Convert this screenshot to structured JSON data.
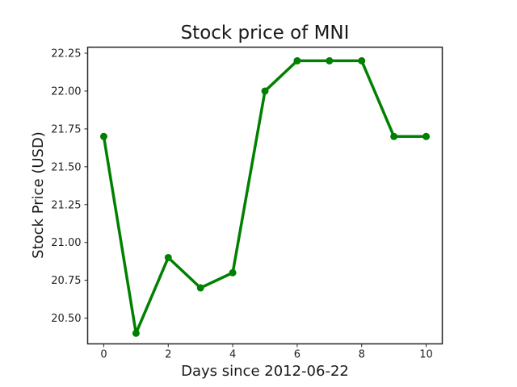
{
  "chart_data": {
    "type": "line",
    "title": "Stock price of MNI",
    "xlabel": "Days since 2012-06-22",
    "ylabel": "Stock Price (USD)",
    "x": [
      0,
      1,
      2,
      3,
      4,
      5,
      6,
      7,
      8,
      9,
      10
    ],
    "series": [
      {
        "values": [
          21.7,
          20.4,
          20.9,
          20.7,
          20.8,
          22.0,
          22.2,
          22.2,
          22.2,
          21.7,
          21.7
        ],
        "color": "#008000"
      }
    ],
    "xlim": [
      -0.5,
      10.5
    ],
    "ylim": [
      20.33,
      22.29
    ],
    "xticks": [
      0,
      2,
      4,
      6,
      8,
      10
    ],
    "xtick_labels": [
      "0",
      "2",
      "4",
      "6",
      "8",
      "10"
    ],
    "yticks": [
      20.5,
      20.75,
      21.0,
      21.25,
      21.5,
      21.75,
      22.0,
      22.25
    ],
    "ytick_labels": [
      "20.50",
      "20.75",
      "21.00",
      "21.25",
      "21.50",
      "21.75",
      "22.00",
      "22.25"
    ],
    "grid": false,
    "legend": false
  }
}
